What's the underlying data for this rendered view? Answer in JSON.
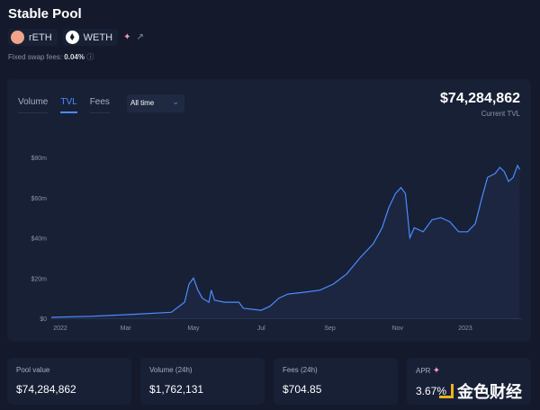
{
  "header": {
    "title": "Stable Pool",
    "tokens": [
      {
        "symbol": "rETH",
        "icon": "reth-icon"
      },
      {
        "symbol": "WETH",
        "icon": "ethereum-icon"
      }
    ],
    "fees_label": "Fixed swap fees:",
    "fees_value": "0.04%"
  },
  "chart_panel": {
    "tabs": [
      "Volume",
      "TVL",
      "Fees"
    ],
    "active_tab": "TVL",
    "range_select": "All time",
    "current_value": "$74,284,862",
    "current_label": "Current TVL",
    "accent": "#4a8cff"
  },
  "chart_data": {
    "type": "area",
    "title": "",
    "xlabel": "",
    "ylabel": "",
    "x_ticks": [
      {
        "label": "2022",
        "date": "2022-01-01"
      },
      {
        "label": "Mar",
        "date": "2022-03-01"
      },
      {
        "label": "May",
        "date": "2022-05-01"
      },
      {
        "label": "Jul",
        "date": "2022-07-01"
      },
      {
        "label": "Sep",
        "date": "2022-09-01"
      },
      {
        "label": "Nov",
        "date": "2022-11-01"
      },
      {
        "label": "2023",
        "date": "2023-01-01"
      }
    ],
    "y_ticks": [
      {
        "label": "$0",
        "value": 0
      },
      {
        "label": "$20m",
        "value": 20
      },
      {
        "label": "$40m",
        "value": 40
      },
      {
        "label": "$60m",
        "value": 60
      },
      {
        "label": "$80m",
        "value": 80
      }
    ],
    "ylim": [
      0,
      80
    ],
    "y_unit": "millions USD",
    "grid": false,
    "series": [
      {
        "points": [
          [
            "2021-12-24",
            0.5
          ],
          [
            "2022-01-28",
            1
          ],
          [
            "2022-03-09",
            2
          ],
          [
            "2022-04-11",
            3
          ],
          [
            "2022-04-23",
            8
          ],
          [
            "2022-04-27",
            17
          ],
          [
            "2022-05-01",
            20
          ],
          [
            "2022-05-05",
            14
          ],
          [
            "2022-05-09",
            10
          ],
          [
            "2022-05-15",
            8
          ],
          [
            "2022-05-17",
            14
          ],
          [
            "2022-05-20",
            9
          ],
          [
            "2022-05-29",
            8
          ],
          [
            "2022-06-11",
            8
          ],
          [
            "2022-06-15",
            5
          ],
          [
            "2022-07-01",
            4
          ],
          [
            "2022-07-09",
            6
          ],
          [
            "2022-07-17",
            10
          ],
          [
            "2022-07-25",
            12
          ],
          [
            "2022-08-10",
            13
          ],
          [
            "2022-08-23",
            14
          ],
          [
            "2022-09-04",
            17
          ],
          [
            "2022-09-16",
            22
          ],
          [
            "2022-09-28",
            30
          ],
          [
            "2022-10-10",
            37
          ],
          [
            "2022-10-18",
            45
          ],
          [
            "2022-10-24",
            55
          ],
          [
            "2022-10-30",
            62
          ],
          [
            "2022-11-04",
            65
          ],
          [
            "2022-11-08",
            62
          ],
          [
            "2022-11-12",
            40
          ],
          [
            "2022-11-16",
            45
          ],
          [
            "2022-11-24",
            43
          ],
          [
            "2022-12-02",
            49
          ],
          [
            "2022-12-10",
            50
          ],
          [
            "2022-12-18",
            48
          ],
          [
            "2022-12-26",
            43
          ],
          [
            "2023-01-03",
            43
          ],
          [
            "2023-01-10",
            47
          ],
          [
            "2023-01-16",
            60
          ],
          [
            "2023-01-21",
            70
          ],
          [
            "2023-01-28",
            72
          ],
          [
            "2023-02-01",
            75
          ],
          [
            "2023-02-05",
            73
          ],
          [
            "2023-02-09",
            68
          ],
          [
            "2023-02-13",
            70
          ],
          [
            "2023-02-17",
            76
          ],
          [
            "2023-02-19",
            74
          ]
        ]
      }
    ]
  },
  "stats": [
    {
      "label": "Pool value",
      "value": "$74,284,862"
    },
    {
      "label": "Volume (24h)",
      "value": "$1,762,131"
    },
    {
      "label": "Fees (24h)",
      "value": "$704.85"
    },
    {
      "label": "APR",
      "value": "3.67%"
    }
  ],
  "watermark": "金色财经"
}
